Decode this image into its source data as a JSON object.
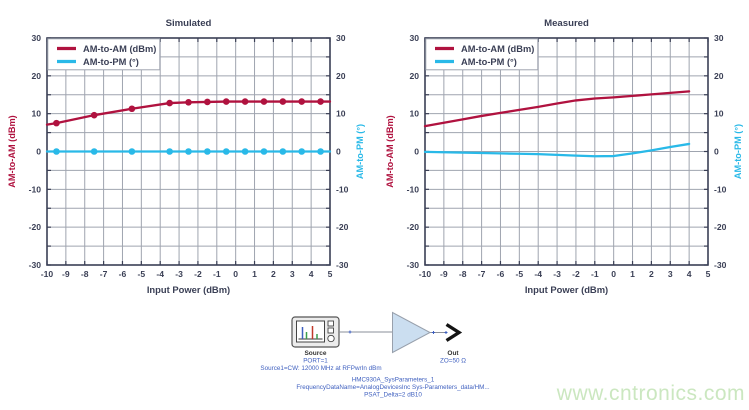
{
  "colors": {
    "am_am": "#B0123F",
    "am_pm": "#29B9E8",
    "axis_text": "#3A3F55",
    "grid": "#9FA4AF",
    "frame": "#3A3F55",
    "schematic_text_blue": "#3E5FBF",
    "schematic_text_black": "#333333",
    "amp_fill": "#CBDEF0",
    "amp_stroke": "#98A0AC",
    "watermark": "#CBE7C0"
  },
  "chart_data": [
    {
      "type": "line",
      "title": "Simulated",
      "xlabel": "Input Power (dBm)",
      "ylabel_left": "AM-to-AM (dBm)",
      "ylabel_right": "AM-to-PM (°)",
      "xlim": [
        -10,
        5
      ],
      "ylim": [
        -30,
        30
      ],
      "xtick_labels": [
        -10,
        -9,
        -8,
        -7,
        -6,
        -5,
        -4,
        -3,
        -2,
        -1,
        0,
        1,
        2,
        3,
        4,
        5
      ],
      "ytick_labels": [
        30,
        20,
        10,
        0,
        -10,
        -20,
        -30
      ],
      "xgrid_step": 1,
      "ygrid_step": 5,
      "grid": true,
      "legend_position": "top-left",
      "legend": [
        "AM-to-AM (dBm)",
        "AM-to-PM (°)"
      ],
      "series": [
        {
          "name": "AM-to-AM (dBm)",
          "color": "#B0123F",
          "line_x": [
            -10,
            -9.5,
            -7.5,
            -5.5,
            -3.5,
            -2.5,
            -1.5,
            -0.5,
            0.5,
            1.5,
            2.5,
            3.5,
            4.5,
            5
          ],
          "line_y": [
            7.1,
            7.5,
            9.6,
            11.3,
            12.8,
            13.0,
            13.1,
            13.2,
            13.2,
            13.2,
            13.2,
            13.2,
            13.2,
            13.2
          ],
          "marker_x": [
            -9.5,
            -7.5,
            -5.5,
            -3.5,
            -2.5,
            -1.5,
            -0.5,
            0.5,
            1.5,
            2.5,
            3.5,
            4.5
          ],
          "marker_y": [
            7.5,
            9.6,
            11.3,
            12.8,
            13.0,
            13.1,
            13.2,
            13.2,
            13.2,
            13.2,
            13.2,
            13.2
          ]
        },
        {
          "name": "AM-to-PM (°)",
          "color": "#29B9E8",
          "line_x": [
            -10,
            5
          ],
          "line_y": [
            0,
            0
          ],
          "marker_x": [
            -9.5,
            -7.5,
            -5.5,
            -3.5,
            -2.5,
            -1.5,
            -0.5,
            0.5,
            1.5,
            2.5,
            3.5,
            4.5
          ],
          "marker_y": [
            0,
            0,
            0,
            0,
            0,
            0,
            0,
            0,
            0,
            0,
            0,
            0
          ]
        }
      ]
    },
    {
      "type": "line",
      "title": "Measured",
      "xlabel": "Input Power (dBm)",
      "ylabel_left": "AM-to-AM (dBm)",
      "ylabel_right": "AM-to-PM (°)",
      "xlim": [
        -10,
        5
      ],
      "ylim": [
        -30,
        30
      ],
      "xtick_labels": [
        -10,
        -9,
        -8,
        -7,
        -6,
        -5,
        -4,
        -3,
        -2,
        -1,
        0,
        1,
        2,
        3,
        4,
        5
      ],
      "ytick_labels": [
        30,
        20,
        10,
        0,
        -10,
        -20,
        -30
      ],
      "xgrid_step": 1,
      "ygrid_step": 5,
      "grid": true,
      "legend_position": "top-left",
      "legend": [
        "AM-to-AM (dBm)",
        "AM-to-PM (°)"
      ],
      "series": [
        {
          "name": "AM-to-AM (dBm)",
          "color": "#B0123F",
          "line_x": [
            -10,
            -9,
            -8,
            -7,
            -6,
            -5,
            -4,
            -3,
            -2,
            -1,
            0,
            1,
            2,
            3,
            4
          ],
          "line_y": [
            6.7,
            7.6,
            8.5,
            9.4,
            10.2,
            11.0,
            11.8,
            12.7,
            13.5,
            14.0,
            14.3,
            14.7,
            15.1,
            15.5,
            15.9
          ],
          "marker_x": [],
          "marker_y": []
        },
        {
          "name": "AM-to-PM (°)",
          "color": "#29B9E8",
          "line_x": [
            -10,
            -9,
            -8,
            -7,
            -6,
            -5,
            -4,
            -3,
            -2,
            -1,
            0,
            1,
            2,
            3,
            4
          ],
          "line_y": [
            -0.1,
            -0.2,
            -0.3,
            -0.4,
            -0.5,
            -0.6,
            -0.7,
            -0.9,
            -1.1,
            -1.25,
            -1.2,
            -0.5,
            0.3,
            1.2,
            2.0
          ],
          "marker_x": [],
          "marker_y": []
        }
      ]
    }
  ],
  "schematic": {
    "source": {
      "label": "Source",
      "port": "PORT=1",
      "param": "Source1=CW: 12000 MHz at RFPwrIn dBm"
    },
    "amplifier": {
      "name": "HMC930A_SysParameters_1",
      "param1": "FrequencyDataName=AnalogDevicesInc Sys-Parameters_data/HM...",
      "param2": "PSAT_Delta=2 dB10"
    },
    "output": {
      "label": "Out",
      "param": "ZO=50 Ω"
    }
  },
  "watermark": {
    "text": "www.cntronics.com"
  }
}
